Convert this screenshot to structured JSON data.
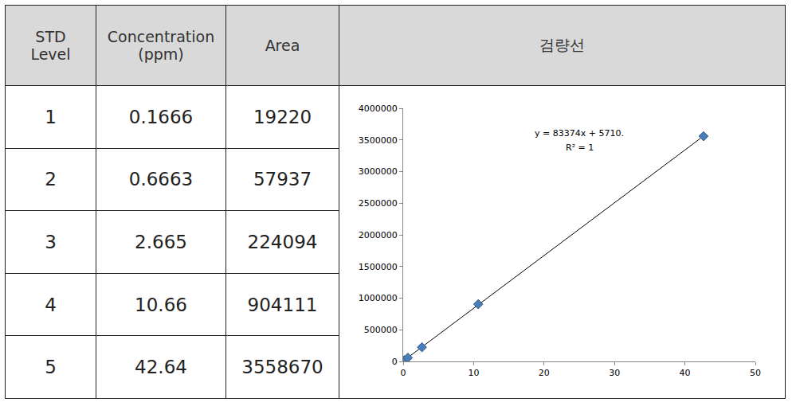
{
  "table": {
    "header": [
      [
        "STD",
        "Level"
      ],
      [
        "Concentration",
        "(ppm)"
      ],
      [
        "Area"
      ],
      [
        "검량선"
      ]
    ],
    "rows": [
      [
        "1",
        "0.1666",
        "19220"
      ],
      [
        "2",
        "0.6663",
        "57937"
      ],
      [
        "3",
        "2.665",
        "224094"
      ],
      [
        "4",
        "10.66",
        "904111"
      ],
      [
        "5",
        "42.64",
        "3558670"
      ]
    ]
  },
  "chart_data": {
    "type": "scatter",
    "x": [
      0.1666,
      0.6663,
      2.665,
      10.66,
      42.64
    ],
    "values": [
      19220,
      57937,
      224094,
      904111,
      3558670
    ],
    "color": "#4a7ebb",
    "marker": "diamond",
    "trendline": {
      "slope": 83374,
      "intercept": 5710,
      "color": "#000000"
    },
    "annotations": [
      "y = 83374x + 5710.",
      "R² = 1"
    ],
    "xlim": [
      0,
      50
    ],
    "xticks": [
      0,
      10,
      20,
      30,
      40,
      50
    ],
    "ylim": [
      0,
      4000000
    ],
    "yticks": [
      0,
      500000,
      1000000,
      1500000,
      2000000,
      2500000,
      3000000,
      3500000,
      4000000
    ],
    "grid": false
  }
}
